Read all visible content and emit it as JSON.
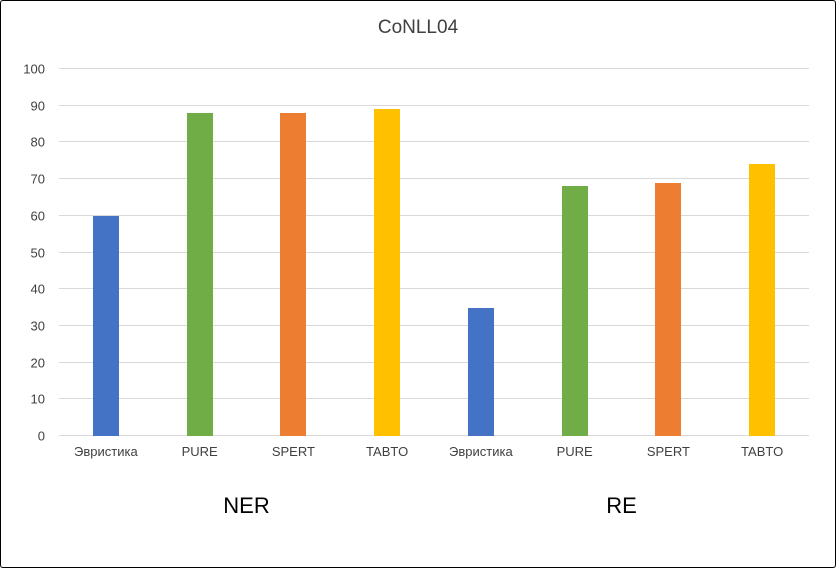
{
  "chart_data": {
    "type": "bar",
    "title": "CoNLL04",
    "categories": [
      "NER",
      "RE"
    ],
    "series": [
      {
        "name": "Эвристика",
        "color": "#4472C4",
        "values": [
          60,
          35
        ]
      },
      {
        "name": "PURE",
        "color": "#70AD47",
        "values": [
          88,
          68
        ]
      },
      {
        "name": "SPERT",
        "color": "#ED7D31",
        "values": [
          88,
          69
        ]
      },
      {
        "name": "TABTO",
        "color": "#FFC000",
        "values": [
          89,
          74
        ]
      }
    ],
    "ylim": [
      0,
      100
    ],
    "ytick_step": 10,
    "grid": true,
    "legend": "none",
    "axis_label_style": "multi-level",
    "gridline_color": "#D9D9D9",
    "text_color": "#404040"
  }
}
